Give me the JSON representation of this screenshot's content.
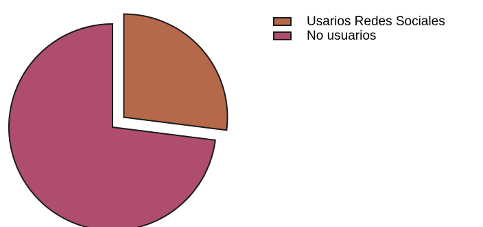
{
  "chart_data": {
    "type": "pie",
    "title": "",
    "categories": [
      "Usarios Redes Sociales",
      "No usuarios"
    ],
    "values": [
      27,
      73
    ],
    "colors": [
      "#b5694a",
      "#ae4d6e"
    ],
    "exploded": [
      true,
      false
    ],
    "start_angle": "12 o'clock, clockwise",
    "legend_position": "top-right"
  }
}
